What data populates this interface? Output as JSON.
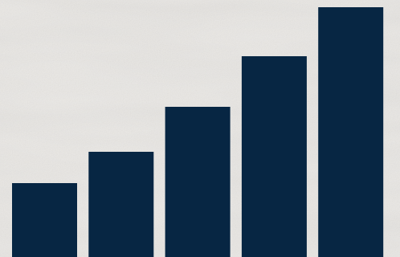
{
  "colors": {
    "background": "#ebe9e6",
    "bar": "#072643"
  },
  "chart_data": {
    "type": "bar",
    "categories": [
      "",
      "",
      "",
      "",
      ""
    ],
    "values": [
      92,
      131,
      187,
      250,
      311
    ],
    "title": "",
    "xlabel": "",
    "ylabel": "",
    "ylim": [
      0,
      320
    ],
    "grid": false,
    "legend": "none"
  }
}
